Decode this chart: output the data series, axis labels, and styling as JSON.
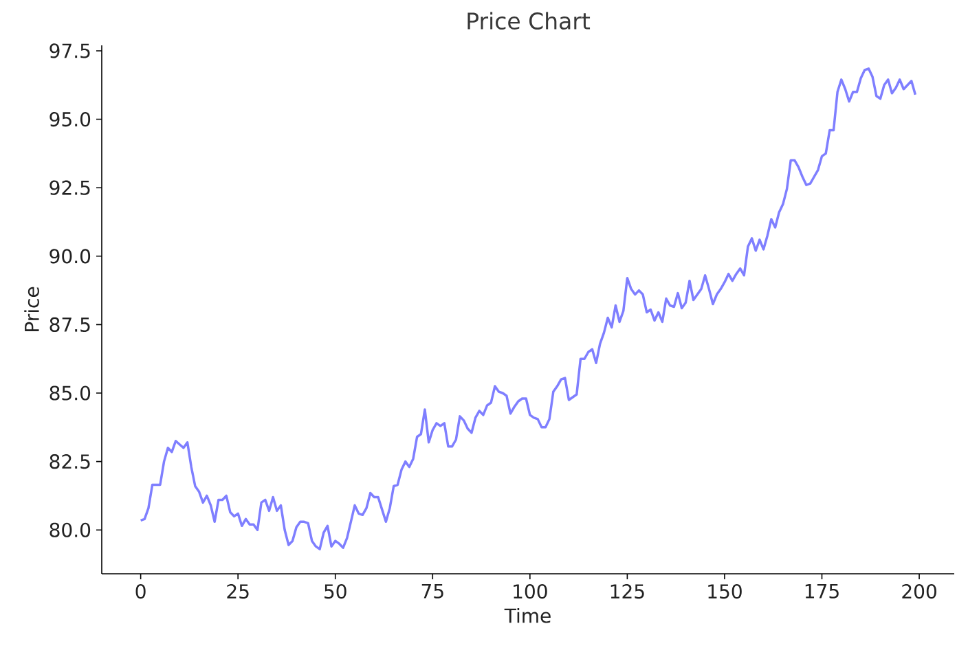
{
  "chart_data": {
    "type": "line",
    "title": "Price Chart",
    "xlabel": "Time",
    "ylabel": "Price",
    "color": "#7f7fff",
    "xlim": [
      -10,
      209
    ],
    "ylim": [
      78.4,
      97.7
    ],
    "xticks": [
      0,
      25,
      50,
      75,
      100,
      125,
      150,
      175,
      200
    ],
    "yticks": [
      {
        "value": 80,
        "label": "80.0"
      },
      {
        "value": 82.5,
        "label": "82.5"
      },
      {
        "value": 85,
        "label": "85.0"
      },
      {
        "value": 87.5,
        "label": "87.5"
      },
      {
        "value": 90,
        "label": "90.0"
      },
      {
        "value": 92.5,
        "label": "92.5"
      },
      {
        "value": 95,
        "label": "95.0"
      },
      {
        "value": 97.5,
        "label": "97.5"
      }
    ],
    "x": [
      0,
      1,
      2,
      3,
      5,
      6,
      7,
      8,
      9,
      11,
      12,
      13,
      14,
      15,
      16,
      17,
      18,
      19,
      20,
      21,
      22,
      23,
      24,
      25,
      26,
      27,
      28,
      29,
      30,
      31,
      32,
      33,
      34,
      35,
      36,
      37,
      38,
      39,
      40,
      41,
      42,
      43,
      44,
      45,
      46,
      47,
      48,
      49,
      50,
      51,
      52,
      53,
      54,
      55,
      56,
      57,
      58,
      59,
      60,
      61,
      62,
      63,
      64,
      65,
      66,
      67,
      68,
      69,
      70,
      71,
      72,
      73,
      74,
      75,
      76,
      77,
      78,
      79,
      80,
      81,
      82,
      83,
      84,
      85,
      86,
      87,
      88,
      89,
      90,
      91,
      92,
      93,
      94,
      95,
      96,
      97,
      98,
      99,
      100,
      101,
      102,
      103,
      104,
      105,
      106,
      107,
      108,
      109,
      110,
      111,
      112,
      113,
      114,
      115,
      116,
      117,
      118,
      119,
      120,
      121,
      122,
      123,
      124,
      125,
      126,
      127,
      128,
      129,
      130,
      131,
      132,
      133,
      134,
      135,
      136,
      137,
      138,
      139,
      140,
      141,
      142,
      143,
      144,
      145,
      146,
      147,
      148,
      149,
      150,
      151,
      152,
      153,
      154,
      155,
      156,
      157,
      158,
      159,
      160,
      161,
      162,
      163,
      164,
      165,
      166,
      167,
      168,
      169,
      170,
      171,
      172,
      173,
      174,
      175,
      176,
      177,
      178,
      179,
      180,
      181,
      182,
      183,
      184,
      185,
      186,
      187,
      188,
      189,
      190,
      191,
      192,
      193,
      194,
      195,
      196,
      197,
      198,
      199
    ],
    "values": [
      80.35,
      80.4,
      80.8,
      81.65,
      81.65,
      82.5,
      83.0,
      82.85,
      83.25,
      83.0,
      83.2,
      82.3,
      81.6,
      81.4,
      81.0,
      81.25,
      80.9,
      80.3,
      81.1,
      81.1,
      81.25,
      80.65,
      80.5,
      80.6,
      80.15,
      80.4,
      80.2,
      80.2,
      80.0,
      81.0,
      81.1,
      80.7,
      81.2,
      80.7,
      80.9,
      80.0,
      79.45,
      79.6,
      80.1,
      80.3,
      80.3,
      80.25,
      79.6,
      79.4,
      79.3,
      79.9,
      80.15,
      79.4,
      79.6,
      79.5,
      79.35,
      79.7,
      80.3,
      80.9,
      80.6,
      80.55,
      80.8,
      81.35,
      81.2,
      81.2,
      80.75,
      80.3,
      80.8,
      81.6,
      81.65,
      82.2,
      82.5,
      82.3,
      82.6,
      83.4,
      83.5,
      84.4,
      83.2,
      83.65,
      83.9,
      83.8,
      83.9,
      83.05,
      83.05,
      83.3,
      84.15,
      84.0,
      83.7,
      83.55,
      84.1,
      84.35,
      84.2,
      84.55,
      84.65,
      85.25,
      85.05,
      85.0,
      84.9,
      84.25,
      84.5,
      84.7,
      84.8,
      84.8,
      84.2,
      84.1,
      84.05,
      83.75,
      83.75,
      84.05,
      85.05,
      85.25,
      85.5,
      85.55,
      84.75,
      84.85,
      84.95,
      86.25,
      86.25,
      86.5,
      86.6,
      86.1,
      86.8,
      87.2,
      87.75,
      87.4,
      88.2,
      87.6,
      88.0,
      89.2,
      88.8,
      88.6,
      88.75,
      88.6,
      87.95,
      88.05,
      87.65,
      87.95,
      87.6,
      88.45,
      88.2,
      88.15,
      88.65,
      88.1,
      88.3,
      89.1,
      88.4,
      88.6,
      88.8,
      89.3,
      88.8,
      88.25,
      88.6,
      88.8,
      89.05,
      89.35,
      89.1,
      89.35,
      89.55,
      89.3,
      90.35,
      90.65,
      90.2,
      90.6,
      90.25,
      90.75,
      91.35,
      91.05,
      91.6,
      91.9,
      92.45,
      93.5,
      93.5,
      93.25,
      92.9,
      92.6,
      92.65,
      92.9,
      93.15,
      93.65,
      93.75,
      94.6,
      94.6,
      96.0,
      96.45,
      96.1,
      95.65,
      96.0,
      96.0,
      96.5,
      96.8,
      96.85,
      96.55,
      95.85,
      95.75,
      96.25,
      96.45,
      95.95,
      96.15,
      96.45,
      96.1,
      96.25,
      96.4,
      95.9
    ]
  }
}
